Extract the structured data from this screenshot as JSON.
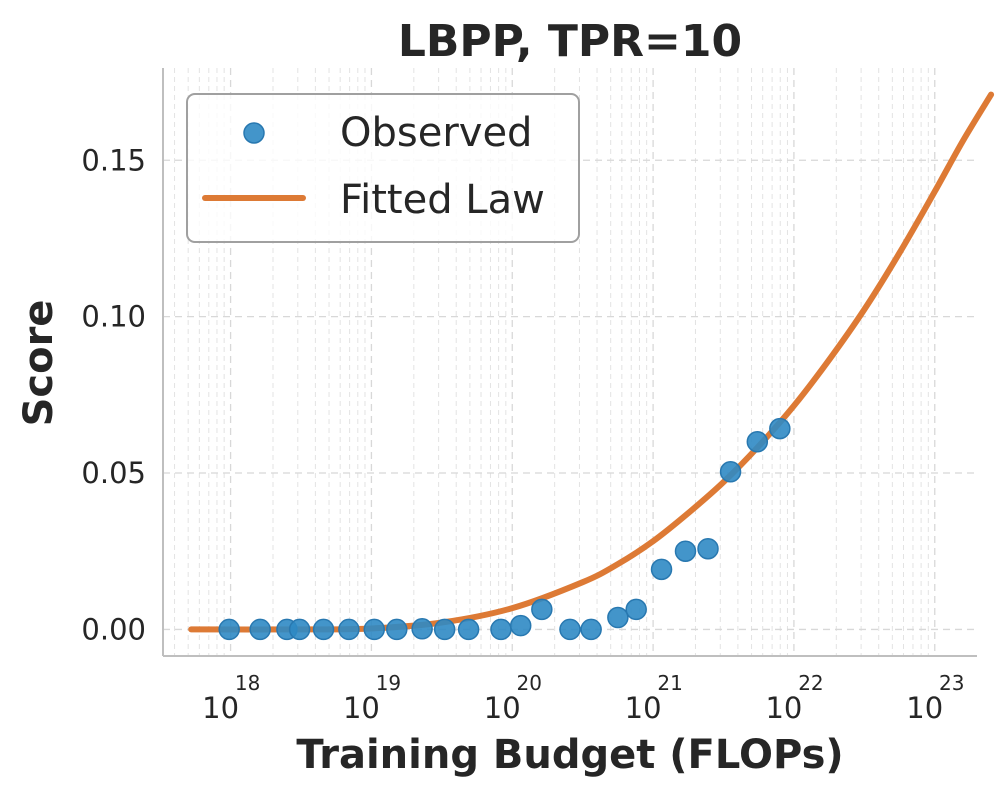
{
  "chart_data": {
    "type": "scatter",
    "title": "LBPP, TPR=10",
    "xlabel": "Training Budget (FLOPs)",
    "ylabel": "Score",
    "xscale": "log",
    "xlim_exp": [
      17.52,
      23.3
    ],
    "ylim": [
      -0.0085,
      0.1795
    ],
    "x_ticks": [
      {
        "base": "10",
        "exp": "18",
        "value_exp": 18
      },
      {
        "base": "10",
        "exp": "19",
        "value_exp": 19
      },
      {
        "base": "10",
        "exp": "20",
        "value_exp": 20
      },
      {
        "base": "10",
        "exp": "21",
        "value_exp": 21
      },
      {
        "base": "10",
        "exp": "22",
        "value_exp": 22
      },
      {
        "base": "10",
        "exp": "23",
        "value_exp": 23
      }
    ],
    "y_ticks": [
      {
        "label": "0.00",
        "value": 0.0
      },
      {
        "label": "0.05",
        "value": 0.05
      },
      {
        "label": "0.10",
        "value": 0.1
      },
      {
        "label": "0.15",
        "value": 0.15
      }
    ],
    "grid": true,
    "legend_position": "top-left",
    "series": [
      {
        "name": "Observed",
        "kind": "scatter",
        "color": "#2f8ac4",
        "points": [
          {
            "log10_x": 17.99,
            "y": 0.0
          },
          {
            "log10_x": 18.21,
            "y": 0.0
          },
          {
            "log10_x": 18.4,
            "y": 0.0
          },
          {
            "log10_x": 18.49,
            "y": 0.0
          },
          {
            "log10_x": 18.66,
            "y": 0.0
          },
          {
            "log10_x": 18.84,
            "y": 0.0
          },
          {
            "log10_x": 19.02,
            "y": 0.0
          },
          {
            "log10_x": 19.18,
            "y": 0.0
          },
          {
            "log10_x": 19.36,
            "y": 0.0002
          },
          {
            "log10_x": 19.52,
            "y": 0.0
          },
          {
            "log10_x": 19.69,
            "y": 0.0
          },
          {
            "log10_x": 19.92,
            "y": 0.0
          },
          {
            "log10_x": 20.06,
            "y": 0.0012
          },
          {
            "log10_x": 20.21,
            "y": 0.0064
          },
          {
            "log10_x": 20.41,
            "y": 0.0
          },
          {
            "log10_x": 20.56,
            "y": 0.0
          },
          {
            "log10_x": 20.75,
            "y": 0.0038
          },
          {
            "log10_x": 20.88,
            "y": 0.0064
          },
          {
            "log10_x": 21.06,
            "y": 0.0192
          },
          {
            "log10_x": 21.23,
            "y": 0.025
          },
          {
            "log10_x": 21.39,
            "y": 0.0258
          },
          {
            "log10_x": 21.55,
            "y": 0.0504
          },
          {
            "log10_x": 21.74,
            "y": 0.06
          },
          {
            "log10_x": 21.9,
            "y": 0.0642
          }
        ]
      },
      {
        "name": "Fitted Law",
        "kind": "line",
        "color": "#dd7a35",
        "points": [
          {
            "log10_x": 17.72,
            "y": 0.0
          },
          {
            "log10_x": 18.5,
            "y": 0.0
          },
          {
            "log10_x": 19.0,
            "y": 0.0003
          },
          {
            "log10_x": 19.5,
            "y": 0.0022
          },
          {
            "log10_x": 20.0,
            "y": 0.0068
          },
          {
            "log10_x": 20.5,
            "y": 0.0151
          },
          {
            "log10_x": 20.75,
            "y": 0.0209
          },
          {
            "log10_x": 21.0,
            "y": 0.0282
          },
          {
            "log10_x": 21.25,
            "y": 0.0372
          },
          {
            "log10_x": 21.5,
            "y": 0.0471
          },
          {
            "log10_x": 21.75,
            "y": 0.0586
          },
          {
            "log10_x": 22.0,
            "y": 0.0715
          },
          {
            "log10_x": 22.25,
            "y": 0.0862
          },
          {
            "log10_x": 22.5,
            "y": 0.1023
          },
          {
            "log10_x": 22.75,
            "y": 0.1204
          },
          {
            "log10_x": 23.0,
            "y": 0.14
          },
          {
            "log10_x": 23.2,
            "y": 0.1562
          },
          {
            "log10_x": 23.4,
            "y": 0.171
          }
        ]
      }
    ]
  }
}
